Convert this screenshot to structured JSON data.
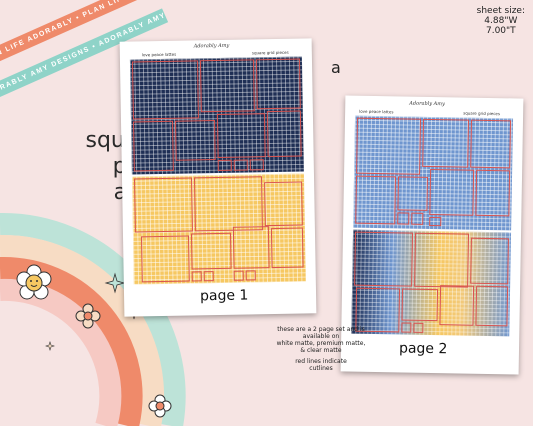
{
  "banners": {
    "top": "PLAN LIFE ADORABLY • PLAN LIFE ADORABLY • PLAN LIFE",
    "bottom": "ADORABLY AMY DESIGNS • ADORABLY AMY DESIGNS"
  },
  "title": [
    "square grid",
    "pieces",
    "addon"
  ],
  "sheet_size": {
    "label": "sheet size:",
    "width": "4.88\"W",
    "height": "7.00\"T"
  },
  "variant_letter": "a",
  "page1": {
    "left_header": "love peace lattes",
    "right_header": "square grid pieces",
    "logo": "Adorably Amy",
    "caption": "page 1"
  },
  "page2": {
    "left_header": "love peace lattes",
    "right_header": "square grid pieces",
    "logo": "Adorably Amy",
    "caption": "page 2"
  },
  "note": {
    "line1": "these are a 2 page set and is",
    "line2": "available on",
    "line3": "white matte, premium matte,",
    "line4": "& clear matte",
    "line5": "red lines indicate",
    "line6": "cutlines"
  },
  "colors": {
    "navy": "#1f2f55",
    "gold": "#f6c862",
    "blue": "#6f96cf",
    "cutline": "#d9534f"
  }
}
